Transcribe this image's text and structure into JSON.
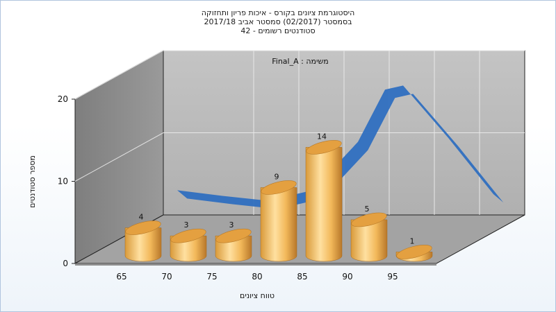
{
  "chart_data": {
    "type": "bar",
    "title_lines": [
      "היסטוגרמת ציונים בקורס - איכות פריון ותחזוקה",
      "בסמסטר  (02/2017)  סמסטר אביב 2017/18",
      "סטודנטים רשומים - 42"
    ],
    "annotation": "משימה : Final_A",
    "xlabel": "טווח ציונים",
    "ylabel": "מספר סטודנטים",
    "categories": [
      "65",
      "70",
      "75",
      "80",
      "85",
      "90",
      "95"
    ],
    "values": [
      4,
      3,
      3,
      9,
      14,
      5,
      1
    ],
    "data_labels": [
      "4",
      "3",
      "3",
      "9",
      "14",
      "5",
      "1"
    ],
    "y_ticks": [
      "0",
      "10",
      "20"
    ],
    "ylim": [
      0,
      20
    ],
    "curve": {
      "type": "area-ribbon",
      "x": [
        65,
        70,
        75,
        80,
        85,
        88,
        90,
        95,
        100
      ],
      "values": [
        3.5,
        2.8,
        2.2,
        3.5,
        9.5,
        16.0,
        16.5,
        10.0,
        3.0
      ]
    },
    "grid": true,
    "colors": {
      "bar_light": "#ffe0a0",
      "bar_mid": "#f0b050",
      "bar_dark": "#c88020",
      "bar_top": "#e4a040",
      "curve": "#2f6fc0",
      "back_wall": "#b8b8b8",
      "side_wall": "#8a8a8a",
      "floor": "#a6a6a6"
    }
  }
}
